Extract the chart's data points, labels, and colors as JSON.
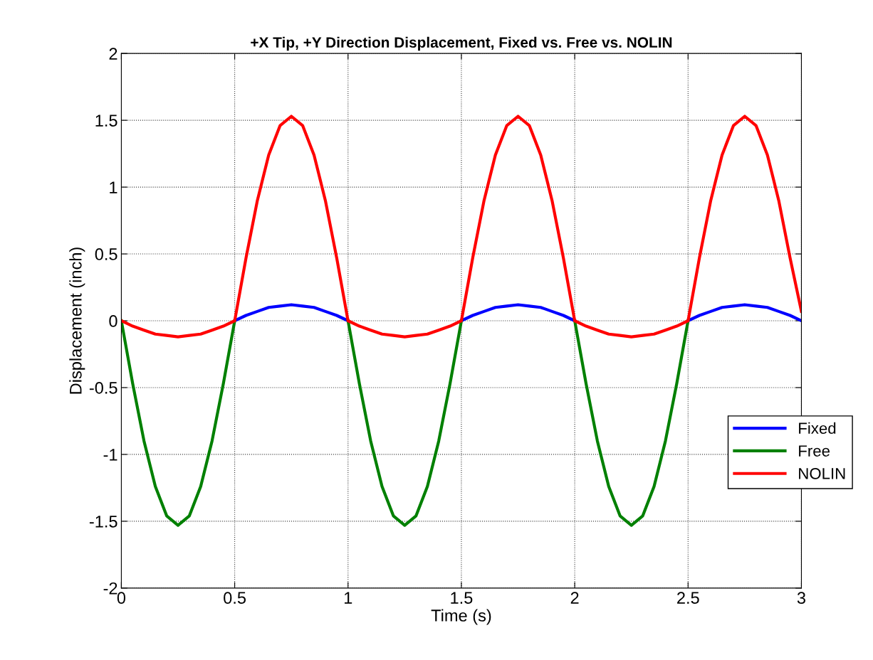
{
  "chart_data": {
    "type": "line",
    "title": "+X Tip, +Y Direction Displacement, Fixed vs. Free vs. NOLIN",
    "xlabel": "Time (s)",
    "ylabel": "Displacement (inch)",
    "x": [
      0,
      0.05,
      0.1,
      0.15,
      0.2,
      0.25,
      0.3,
      0.35,
      0.4,
      0.45,
      0.5,
      0.55,
      0.6,
      0.65,
      0.7,
      0.75,
      0.8,
      0.85,
      0.9,
      0.95,
      1,
      1.05,
      1.1,
      1.15,
      1.2,
      1.25,
      1.3,
      1.35,
      1.4,
      1.45,
      1.5,
      1.55,
      1.6,
      1.65,
      1.7,
      1.75,
      1.8,
      1.85,
      1.9,
      1.95,
      2,
      2.05,
      2.1,
      2.15,
      2.2,
      2.25,
      2.3,
      2.35,
      2.4,
      2.45,
      2.5,
      2.55,
      2.6,
      2.65,
      2.7,
      2.75,
      2.8,
      2.85,
      2.9,
      2.95,
      3
    ],
    "series": [
      {
        "name": "Fixed",
        "color": "#0000ff",
        "values": [
          null,
          null,
          null,
          null,
          null,
          null,
          null,
          null,
          null,
          null,
          0,
          0.04,
          0.07,
          0.1,
          0.11,
          0.12,
          0.11,
          0.1,
          0.07,
          0.04,
          0,
          null,
          null,
          null,
          null,
          null,
          null,
          null,
          null,
          null,
          0,
          0.04,
          0.07,
          0.1,
          0.11,
          0.12,
          0.11,
          0.1,
          0.07,
          0.04,
          0,
          null,
          null,
          null,
          null,
          null,
          null,
          null,
          null,
          null,
          0,
          0.04,
          0.07,
          0.1,
          0.11,
          0.12,
          0.11,
          0.1,
          0.07,
          0.04,
          0
        ]
      },
      {
        "name": "Free",
        "color": "#008000",
        "values": [
          0,
          -0.47,
          -0.9,
          -1.24,
          -1.46,
          -1.53,
          -1.46,
          -1.24,
          -0.9,
          -0.47,
          0,
          null,
          null,
          null,
          null,
          null,
          null,
          null,
          null,
          null,
          0,
          -0.47,
          -0.9,
          -1.24,
          -1.46,
          -1.53,
          -1.46,
          -1.24,
          -0.9,
          -0.47,
          0,
          null,
          null,
          null,
          null,
          null,
          null,
          null,
          null,
          null,
          0,
          -0.47,
          -0.9,
          -1.24,
          -1.46,
          -1.53,
          -1.46,
          -1.24,
          -0.9,
          -0.47,
          0,
          null,
          null,
          null,
          null,
          null,
          null,
          null,
          null,
          null,
          null
        ]
      },
      {
        "name": "NOLIN",
        "color": "#ff0000",
        "values": [
          0,
          -0.04,
          -0.07,
          -0.1,
          -0.11,
          -0.12,
          -0.11,
          -0.1,
          -0.07,
          -0.04,
          0,
          0.47,
          0.9,
          1.24,
          1.46,
          1.53,
          1.46,
          1.24,
          0.9,
          0.47,
          0,
          -0.04,
          -0.07,
          -0.1,
          -0.11,
          -0.12,
          -0.11,
          -0.1,
          -0.07,
          -0.04,
          0,
          0.47,
          0.9,
          1.24,
          1.46,
          1.53,
          1.46,
          1.24,
          0.9,
          0.47,
          0,
          -0.04,
          -0.07,
          -0.1,
          -0.11,
          -0.12,
          -0.11,
          -0.1,
          -0.07,
          -0.04,
          0,
          0.47,
          0.9,
          1.24,
          1.46,
          1.53,
          1.46,
          1.24,
          0.9,
          0.47,
          0.07
        ]
      }
    ],
    "xlim": [
      0,
      3
    ],
    "xticks": [
      0,
      0.5,
      1,
      1.5,
      2,
      2.5,
      3
    ],
    "ylim": [
      -2,
      2
    ],
    "yticks": [
      -2,
      -1.5,
      -1,
      -0.5,
      0,
      0.5,
      1,
      1.5,
      2
    ],
    "grid": true,
    "legend": "right",
    "marker": "none",
    "line_style": "solid"
  }
}
